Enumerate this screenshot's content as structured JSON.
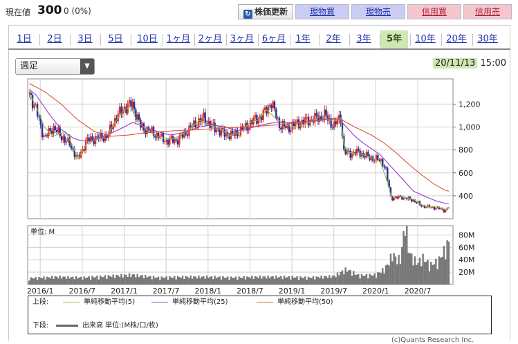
{
  "header": {
    "price_label": "現在値",
    "price_value": "300",
    "price_change": "0 (0%)",
    "refresh_label": "株価更新",
    "buttons": [
      "現物買",
      "現物売",
      "信用買",
      "信用売"
    ]
  },
  "tabs": [
    "1日",
    "2日",
    "3日",
    "5日",
    "10日",
    "1ヶ月",
    "2ヶ月",
    "3ヶ月",
    "6ヶ月",
    "1年",
    "2年",
    "3年",
    "5年",
    "10年",
    "20年",
    "30年"
  ],
  "active_tab": "5年",
  "period_select": "週足",
  "date": "20/11/13",
  "time": "15:00",
  "legend": {
    "upper_label": "上段:",
    "lower_label": "下段:",
    "ma5": "単純移動平均(5)",
    "ma25": "単純移動平均(25)",
    "ma50": "単純移動平均(50)",
    "volume": "出来高 単位:(M株/口/枚)"
  },
  "copyright": "(c)Quants Research Inc.",
  "colors": {
    "up": "#e0302a",
    "down": "#2a2f96",
    "ma5": "#8cc43c",
    "ma25": "#9a39c9",
    "ma50": "#d9573a",
    "volume": "#777777",
    "active_tab": "#cfe7b3"
  },
  "chart_data": [
    {
      "type": "candlestick",
      "title": "",
      "yticks": [
        400,
        600,
        800,
        1000,
        1200
      ],
      "ylim": [
        200,
        1420
      ],
      "xticks": [
        "2016/1",
        "2016/7",
        "2017/1",
        "2017/7",
        "2018/1",
        "2018/7",
        "2019/1",
        "2019/7",
        "2020/1",
        "2020/7"
      ],
      "xlim": [
        2015.85,
        2020.92
      ],
      "grid": true,
      "series": [
        {
          "name": "単純移動平均(5)",
          "points": [
            [
              2015.87,
              1300
            ],
            [
              2015.95,
              1180
            ],
            [
              2016.05,
              1000
            ],
            [
              2016.15,
              920
            ],
            [
              2016.3,
              960
            ],
            [
              2016.4,
              820
            ],
            [
              2016.45,
              720
            ],
            [
              2016.55,
              850
            ],
            [
              2016.7,
              900
            ],
            [
              2016.8,
              930
            ],
            [
              2016.9,
              1050
            ],
            [
              2017.0,
              1150
            ],
            [
              2017.08,
              1180
            ],
            [
              2017.15,
              1050
            ],
            [
              2017.3,
              960
            ],
            [
              2017.45,
              900
            ],
            [
              2017.6,
              900
            ],
            [
              2017.75,
              960
            ],
            [
              2017.9,
              1060
            ],
            [
              2018.0,
              1020
            ],
            [
              2018.15,
              990
            ],
            [
              2018.25,
              920
            ],
            [
              2018.4,
              960
            ],
            [
              2018.5,
              1040
            ],
            [
              2018.6,
              1060
            ],
            [
              2018.7,
              1150
            ],
            [
              2018.8,
              1080
            ],
            [
              2018.95,
              1010
            ],
            [
              2019.05,
              1000
            ],
            [
              2019.2,
              1040
            ],
            [
              2019.35,
              1100
            ],
            [
              2019.45,
              1060
            ],
            [
              2019.5,
              1050
            ],
            [
              2019.58,
              1080
            ],
            [
              2019.62,
              850
            ],
            [
              2019.66,
              780
            ],
            [
              2019.75,
              770
            ],
            [
              2019.85,
              760
            ],
            [
              2019.95,
              730
            ],
            [
              2020.05,
              700
            ],
            [
              2020.12,
              560
            ],
            [
              2020.18,
              400
            ],
            [
              2020.3,
              390
            ],
            [
              2020.45,
              370
            ],
            [
              2020.55,
              320
            ],
            [
              2020.65,
              300
            ],
            [
              2020.72,
              310
            ],
            [
              2020.82,
              280
            ],
            [
              2020.87,
              295
            ]
          ]
        },
        {
          "name": "単純移動平均(25)",
          "points": [
            [
              2015.87,
              1330
            ],
            [
              2015.95,
              1280
            ],
            [
              2016.1,
              1120
            ],
            [
              2016.25,
              980
            ],
            [
              2016.4,
              900
            ],
            [
              2016.5,
              880
            ],
            [
              2016.6,
              880
            ],
            [
              2016.8,
              930
            ],
            [
              2017.0,
              1000
            ],
            [
              2017.1,
              1040
            ],
            [
              2017.25,
              1000
            ],
            [
              2017.4,
              960
            ],
            [
              2017.55,
              930
            ],
            [
              2017.7,
              950
            ],
            [
              2017.9,
              1000
            ],
            [
              2018.05,
              1020
            ],
            [
              2018.2,
              1000
            ],
            [
              2018.35,
              970
            ],
            [
              2018.5,
              990
            ],
            [
              2018.65,
              1020
            ],
            [
              2018.8,
              1040
            ],
            [
              2018.95,
              1040
            ],
            [
              2019.1,
              1040
            ],
            [
              2019.3,
              1060
            ],
            [
              2019.45,
              1070
            ],
            [
              2019.55,
              1080
            ],
            [
              2019.65,
              1000
            ],
            [
              2019.75,
              920
            ],
            [
              2019.85,
              860
            ],
            [
              2019.95,
              810
            ],
            [
              2020.05,
              760
            ],
            [
              2020.15,
              680
            ],
            [
              2020.3,
              560
            ],
            [
              2020.45,
              440
            ],
            [
              2020.6,
              390
            ],
            [
              2020.72,
              355
            ],
            [
              2020.82,
              335
            ],
            [
              2020.87,
              330
            ]
          ]
        },
        {
          "name": "単純移動平均(50)",
          "points": [
            [
              2015.87,
              1380
            ],
            [
              2016.05,
              1310
            ],
            [
              2016.25,
              1200
            ],
            [
              2016.45,
              1060
            ],
            [
              2016.65,
              960
            ],
            [
              2016.85,
              920
            ],
            [
              2017.05,
              930
            ],
            [
              2017.25,
              950
            ],
            [
              2017.45,
              960
            ],
            [
              2017.65,
              970
            ],
            [
              2017.85,
              975
            ],
            [
              2018.05,
              985
            ],
            [
              2018.25,
              995
            ],
            [
              2018.45,
              1000
            ],
            [
              2018.65,
              1010
            ],
            [
              2018.85,
              1020
            ],
            [
              2019.05,
              1035
            ],
            [
              2019.25,
              1050
            ],
            [
              2019.45,
              1070
            ],
            [
              2019.6,
              1060
            ],
            [
              2019.75,
              1000
            ],
            [
              2019.95,
              930
            ],
            [
              2020.1,
              860
            ],
            [
              2020.25,
              770
            ],
            [
              2020.4,
              670
            ],
            [
              2020.55,
              580
            ],
            [
              2020.7,
              500
            ],
            [
              2020.82,
              450
            ],
            [
              2020.87,
              440
            ]
          ]
        }
      ],
      "candles_trend": [
        [
          2015.87,
          1300
        ],
        [
          2015.95,
          1150
        ],
        [
          2016.05,
          900
        ],
        [
          2016.15,
          1000
        ],
        [
          2016.25,
          920
        ],
        [
          2016.35,
          850
        ],
        [
          2016.45,
          720
        ],
        [
          2016.55,
          880
        ],
        [
          2016.65,
          900
        ],
        [
          2016.8,
          920
        ],
        [
          2016.9,
          1080
        ],
        [
          2017.0,
          1170
        ],
        [
          2017.1,
          1200
        ],
        [
          2017.2,
          1000
        ],
        [
          2017.35,
          950
        ],
        [
          2017.5,
          880
        ],
        [
          2017.65,
          890
        ],
        [
          2017.8,
          1000
        ],
        [
          2017.95,
          1080
        ],
        [
          2018.05,
          1000
        ],
        [
          2018.2,
          940
        ],
        [
          2018.3,
          930
        ],
        [
          2018.45,
          1000
        ],
        [
          2018.55,
          1060
        ],
        [
          2018.65,
          1100
        ],
        [
          2018.75,
          1220
        ],
        [
          2018.85,
          1020
        ],
        [
          2018.95,
          990
        ],
        [
          2019.05,
          1030
        ],
        [
          2019.15,
          1050
        ],
        [
          2019.3,
          1080
        ],
        [
          2019.4,
          1100
        ],
        [
          2019.5,
          1000
        ],
        [
          2019.58,
          1100
        ],
        [
          2019.62,
          780
        ],
        [
          2019.7,
          770
        ],
        [
          2019.8,
          780
        ],
        [
          2019.9,
          740
        ],
        [
          2020.0,
          720
        ],
        [
          2020.08,
          700
        ],
        [
          2020.12,
          620
        ],
        [
          2020.18,
          380
        ],
        [
          2020.3,
          390
        ],
        [
          2020.45,
          360
        ],
        [
          2020.55,
          310
        ],
        [
          2020.65,
          300
        ],
        [
          2020.75,
          290
        ],
        [
          2020.82,
          270
        ],
        [
          2020.87,
          300
        ]
      ]
    },
    {
      "type": "bar",
      "title": "",
      "unit_label": "単位: M",
      "yticks": [
        20,
        40,
        60,
        80
      ],
      "ytick_labels": [
        "20M",
        "40M",
        "60M",
        "80M"
      ],
      "ylim": [
        0,
        95
      ],
      "xlim": [
        2015.85,
        2020.92
      ],
      "volume_trend": [
        [
          2015.87,
          9
        ],
        [
          2016.2,
          11
        ],
        [
          2016.5,
          10
        ],
        [
          2016.8,
          12
        ],
        [
          2017.1,
          14
        ],
        [
          2017.4,
          10
        ],
        [
          2017.7,
          11
        ],
        [
          2018.0,
          11
        ],
        [
          2018.3,
          10
        ],
        [
          2018.6,
          11
        ],
        [
          2018.9,
          11
        ],
        [
          2019.2,
          10
        ],
        [
          2019.5,
          12
        ],
        [
          2019.65,
          22
        ],
        [
          2019.8,
          13
        ],
        [
          2020.0,
          14
        ],
        [
          2020.1,
          22
        ],
        [
          2020.15,
          30
        ],
        [
          2020.2,
          45
        ],
        [
          2020.25,
          36
        ],
        [
          2020.3,
          38
        ],
        [
          2020.35,
          92
        ],
        [
          2020.4,
          45
        ],
        [
          2020.5,
          30
        ],
        [
          2020.55,
          40
        ],
        [
          2020.65,
          28
        ],
        [
          2020.75,
          35
        ],
        [
          2020.82,
          50
        ],
        [
          2020.87,
          62
        ]
      ]
    }
  ]
}
